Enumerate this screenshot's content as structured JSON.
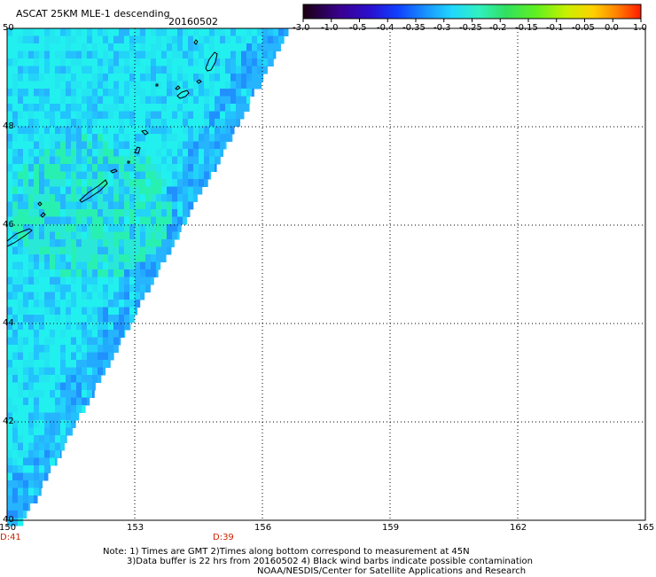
{
  "header": {
    "title": "ASCAT 25KM MLE-1 descending",
    "date": "20160502"
  },
  "colorbar": {
    "tick_labels": [
      "-3.0",
      "-1.0",
      "-0.5",
      "-0.4",
      "-0.35",
      "-0.3",
      "-0.25",
      "-0.2",
      "-0.15",
      "-0.1",
      "-0.05",
      "0.0",
      "1.0"
    ],
    "colors": [
      "#1a0010",
      "#3a0090",
      "#2a10d0",
      "#1040ff",
      "#1890ff",
      "#20d8ff",
      "#30f0c0",
      "#30e060",
      "#60f020",
      "#c8f000",
      "#ffd000",
      "#ff8000",
      "#ff1a00"
    ]
  },
  "map": {
    "lon_labels": [
      "150",
      "153",
      "156",
      "159",
      "162",
      "165"
    ],
    "lat_labels": [
      "50",
      "48",
      "46",
      "44",
      "42",
      "40"
    ],
    "lon_range": [
      150,
      165
    ],
    "lat_range": [
      40,
      50
    ],
    "gridlines": "dotted",
    "swath_time_labels": [
      {
        "text": "D:41",
        "lon": 150
      },
      {
        "text": "D:39",
        "lon": 155
      }
    ],
    "colors": {
      "swath_base": "#22f0ee",
      "swath_blue": "#22aaff",
      "swath_green": "#28f0b0",
      "coast": "#000000",
      "time_label": "#cc2200"
    }
  },
  "footer": {
    "note_line1": "Note: 1) Times are GMT 2)Times along bottom correspond to measurement at 45N",
    "note_line2": "3)Data buffer is 22 hrs from 20160502 4) Black wind barbs indicate possible contamination",
    "note_line3": "NOAA/NESDIS/Center for Satellite Applications and Research"
  }
}
